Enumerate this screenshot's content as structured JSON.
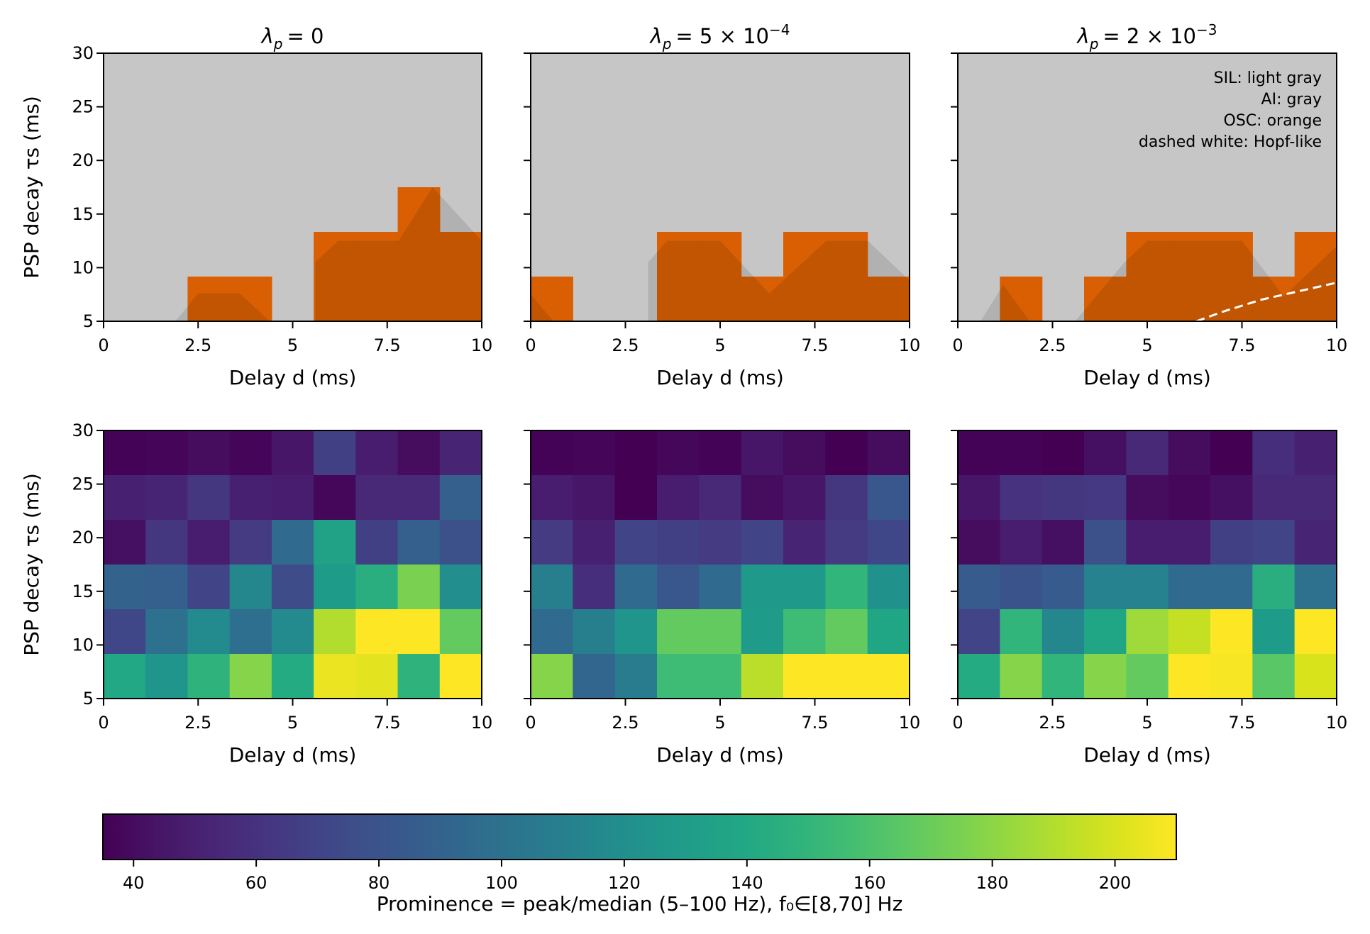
{
  "chart_data": [
    {
      "type": "heatmap",
      "panel": "top-left",
      "title": "λp = 0",
      "title_parts": {
        "symbol": "λ",
        "subscript": "p",
        "rhs": "= 0",
        "exponent": ""
      },
      "xlabel": "Delay d (ms)",
      "ylabel": "PSP decay τs (ms)",
      "xlim": [
        0,
        10
      ],
      "ylim": [
        5,
        30
      ],
      "xticks": [
        0,
        2.5,
        5,
        7.5,
        10
      ],
      "xtick_labels": [
        "0",
        "2.5",
        "5",
        "7.5",
        "10"
      ],
      "yticks": [
        5,
        10,
        15,
        20,
        25,
        30
      ],
      "ytick_labels": [
        "5",
        "10",
        "15",
        "20",
        "25",
        "30"
      ],
      "show_yticklabels": true,
      "grid": {
        "nx": 9,
        "ny": 6
      },
      "regime_note": "Cells marked 1 are OSC (orange); 0 are SIL (light gray). Rows listed bottom (τs=5) to top (τs=30).",
      "osc": [
        [
          0,
          0,
          1,
          1,
          0,
          1,
          1,
          1,
          1
        ],
        [
          0,
          0,
          0,
          0,
          0,
          1,
          1,
          1,
          1
        ],
        [
          0,
          0,
          0,
          0,
          0,
          0,
          0,
          1,
          0
        ],
        [
          0,
          0,
          0,
          0,
          0,
          0,
          0,
          0,
          0
        ],
        [
          0,
          0,
          0,
          0,
          0,
          0,
          0,
          0,
          0
        ],
        [
          0,
          0,
          0,
          0,
          0,
          0,
          0,
          0,
          0
        ]
      ],
      "ai_overlay": [
        [
          1.9,
          5
        ],
        [
          2.5,
          7.6
        ],
        [
          3.6,
          7.6
        ],
        [
          4.4,
          5
        ],
        [
          5.6,
          5
        ],
        [
          5.6,
          10.5
        ],
        [
          6.2,
          12.5
        ],
        [
          7.8,
          12.5
        ],
        [
          8.7,
          17.5
        ],
        [
          10,
          12.5
        ],
        [
          10,
          5
        ]
      ],
      "hopf_line": []
    },
    {
      "type": "heatmap",
      "panel": "top-middle",
      "title": "λp = 5 × 10^-4",
      "title_parts": {
        "symbol": "λ",
        "subscript": "p",
        "rhs": "= 5 × 10",
        "exponent": "−4"
      },
      "xlabel": "Delay d (ms)",
      "ylabel": "",
      "xlim": [
        0,
        10
      ],
      "ylim": [
        5,
        30
      ],
      "xticks": [
        0,
        2.5,
        5,
        7.5,
        10
      ],
      "xtick_labels": [
        "0",
        "2.5",
        "5",
        "7.5",
        "10"
      ],
      "yticks": [
        5,
        10,
        15,
        20,
        25,
        30
      ],
      "ytick_labels": [
        "",
        "",
        "",
        "",
        "",
        ""
      ],
      "show_yticklabels": false,
      "grid": {
        "nx": 9,
        "ny": 6
      },
      "osc": [
        [
          1,
          0,
          0,
          1,
          1,
          1,
          1,
          1,
          1
        ],
        [
          0,
          0,
          0,
          1,
          1,
          0,
          1,
          1,
          0
        ],
        [
          0,
          0,
          0,
          0,
          0,
          0,
          0,
          0,
          0
        ],
        [
          0,
          0,
          0,
          0,
          0,
          0,
          0,
          0,
          0
        ],
        [
          0,
          0,
          0,
          0,
          0,
          0,
          0,
          0,
          0
        ],
        [
          0,
          0,
          0,
          0,
          0,
          0,
          0,
          0,
          0
        ]
      ],
      "ai_overlay": [
        [
          0,
          5
        ],
        [
          0,
          7.5
        ],
        [
          0.6,
          5
        ],
        [
          3.1,
          5
        ],
        [
          3.1,
          10.5
        ],
        [
          3.6,
          12.5
        ],
        [
          5,
          12.5
        ],
        [
          6.3,
          7.6
        ],
        [
          7.8,
          12.5
        ],
        [
          8.9,
          12.5
        ],
        [
          10,
          8.8
        ],
        [
          10,
          5
        ]
      ],
      "hopf_line": []
    },
    {
      "type": "heatmap",
      "panel": "top-right",
      "title": "λp = 2 × 10^-3",
      "title_parts": {
        "symbol": "λ",
        "subscript": "p",
        "rhs": "= 2 × 10",
        "exponent": "−3"
      },
      "xlabel": "Delay d (ms)",
      "ylabel": "",
      "xlim": [
        0,
        10
      ],
      "ylim": [
        5,
        30
      ],
      "xticks": [
        0,
        2.5,
        5,
        7.5,
        10
      ],
      "xtick_labels": [
        "0",
        "2.5",
        "5",
        "7.5",
        "10"
      ],
      "yticks": [
        5,
        10,
        15,
        20,
        25,
        30
      ],
      "ytick_labels": [
        "",
        "",
        "",
        "",
        "",
        ""
      ],
      "show_yticklabels": false,
      "grid": {
        "nx": 9,
        "ny": 6
      },
      "osc": [
        [
          0,
          1,
          0,
          1,
          1,
          1,
          1,
          1,
          1
        ],
        [
          0,
          0,
          0,
          0,
          1,
          1,
          1,
          0,
          1
        ],
        [
          0,
          0,
          0,
          0,
          0,
          0,
          0,
          0,
          0
        ],
        [
          0,
          0,
          0,
          0,
          0,
          0,
          0,
          0,
          0
        ],
        [
          0,
          0,
          0,
          0,
          0,
          0,
          0,
          0,
          0
        ],
        [
          0,
          0,
          0,
          0,
          0,
          0,
          0,
          0,
          0
        ]
      ],
      "ai_overlay": [
        [
          0.6,
          5
        ],
        [
          1.2,
          8.4
        ],
        [
          1.9,
          5
        ],
        [
          3.1,
          5
        ],
        [
          4.4,
          10.5
        ],
        [
          5,
          12.5
        ],
        [
          7.5,
          12.5
        ],
        [
          8.6,
          7.3
        ],
        [
          10,
          12
        ],
        [
          10,
          5
        ]
      ],
      "hopf_line": [
        [
          6.3,
          5
        ],
        [
          7,
          5.9
        ],
        [
          8,
          7
        ],
        [
          9,
          7.8
        ],
        [
          10,
          8.6
        ]
      ],
      "annotations": [
        "SIL: light gray",
        "AI: gray",
        "OSC: orange",
        "dashed white: Hopf-like"
      ]
    },
    {
      "type": "heatmap",
      "panel": "bottom-left",
      "title": "",
      "xlabel": "Delay d (ms)",
      "ylabel": "PSP decay τs (ms)",
      "xlim": [
        0,
        10
      ],
      "ylim": [
        5,
        30
      ],
      "xticks": [
        0,
        2.5,
        5,
        7.5,
        10
      ],
      "xtick_labels": [
        "0",
        "2.5",
        "5",
        "7.5",
        "10"
      ],
      "yticks": [
        5,
        10,
        15,
        20,
        25,
        30
      ],
      "ytick_labels": [
        "5",
        "10",
        "15",
        "20",
        "25",
        "30"
      ],
      "show_yticklabels": true,
      "grid": {
        "nx": 9,
        "ny": 6
      },
      "values_note": "Rows listed top (τs=30) to bottom (τs=5); prominence values",
      "values": [
        [
          36,
          37,
          40,
          37,
          45,
          68,
          48,
          40,
          52
        ],
        [
          50,
          53,
          62,
          50,
          48,
          38,
          55,
          55,
          88
        ],
        [
          42,
          62,
          48,
          65,
          95,
          135,
          68,
          88,
          78
        ],
        [
          90,
          88,
          70,
          115,
          75,
          130,
          145,
          175,
          120
        ],
        [
          72,
          100,
          118,
          98,
          118,
          190,
          210,
          210,
          168
        ],
        [
          140,
          125,
          148,
          178,
          142,
          205,
          203,
          148,
          210
        ]
      ]
    },
    {
      "type": "heatmap",
      "panel": "bottom-middle",
      "title": "",
      "xlabel": "Delay d (ms)",
      "ylabel": "",
      "xlim": [
        0,
        10
      ],
      "ylim": [
        5,
        30
      ],
      "xticks": [
        0,
        2.5,
        5,
        7.5,
        10
      ],
      "xtick_labels": [
        "0",
        "2.5",
        "5",
        "7.5",
        "10"
      ],
      "yticks": [
        5,
        10,
        15,
        20,
        25,
        30
      ],
      "ytick_labels": [
        "",
        "",
        "",
        "",
        "",
        ""
      ],
      "show_yticklabels": false,
      "grid": {
        "nx": 9,
        "ny": 6
      },
      "values": [
        [
          36,
          37,
          35,
          38,
          36,
          45,
          40,
          35,
          40
        ],
        [
          48,
          45,
          35,
          48,
          55,
          40,
          45,
          62,
          82
        ],
        [
          65,
          50,
          70,
          68,
          65,
          70,
          52,
          65,
          72
        ],
        [
          110,
          58,
          95,
          82,
          95,
          128,
          128,
          150,
          122
        ],
        [
          95,
          110,
          125,
          168,
          168,
          130,
          155,
          168,
          138
        ],
        [
          178,
          92,
          108,
          155,
          155,
          192,
          210,
          210,
          210
        ]
      ]
    },
    {
      "type": "heatmap",
      "panel": "bottom-right",
      "title": "",
      "xlabel": "Delay d (ms)",
      "ylabel": "",
      "xlim": [
        0,
        10
      ],
      "ylim": [
        5,
        30
      ],
      "xticks": [
        0,
        2.5,
        5,
        7.5,
        10
      ],
      "xtick_labels": [
        "0",
        "2.5",
        "5",
        "7.5",
        "10"
      ],
      "yticks": [
        5,
        10,
        15,
        20,
        25,
        30
      ],
      "ytick_labels": [
        "",
        "",
        "",
        "",
        "",
        ""
      ],
      "show_yticklabels": false,
      "grid": {
        "nx": 9,
        "ny": 6
      },
      "values": [
        [
          36,
          36,
          35,
          42,
          55,
          40,
          35,
          58,
          50
        ],
        [
          45,
          60,
          62,
          64,
          40,
          38,
          42,
          55,
          55
        ],
        [
          40,
          48,
          42,
          78,
          48,
          48,
          68,
          70,
          52
        ],
        [
          85,
          80,
          85,
          112,
          112,
          95,
          95,
          145,
          100
        ],
        [
          70,
          150,
          115,
          138,
          185,
          195,
          210,
          130,
          210
        ],
        [
          142,
          178,
          150,
          178,
          168,
          210,
          208,
          165,
          200
        ]
      ]
    }
  ],
  "colorbar": {
    "label": "Prominence = peak/median (5–100 Hz), f₀∈[8,70] Hz",
    "colormap": "viridis",
    "range": [
      35,
      210
    ],
    "ticks": [
      40,
      60,
      80,
      100,
      120,
      140,
      160,
      180,
      200
    ],
    "tick_labels": [
      "40",
      "60",
      "80",
      "100",
      "120",
      "140",
      "160",
      "180",
      "200"
    ]
  },
  "colors": {
    "sil": "#c6c6c6",
    "osc": "#d95f02",
    "ai_overlay": "#000000",
    "hopf": "#ffffff",
    "axis": "#000000"
  }
}
